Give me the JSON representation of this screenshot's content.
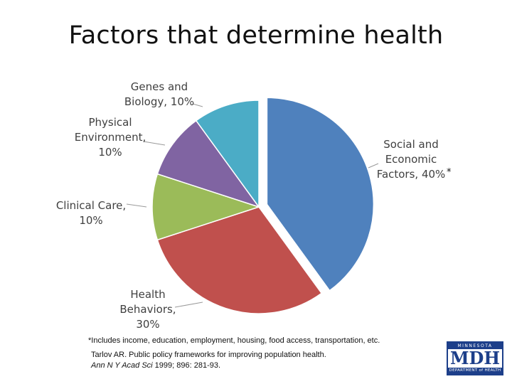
{
  "title": "Factors that determine health",
  "chart_data": {
    "type": "pie",
    "title": "Factors that determine health",
    "slices": [
      {
        "label_lines": [
          "Social and",
          "Economic",
          "Factors, 40%"
        ],
        "name": "Social and Economic Factors",
        "value": 40,
        "color": "#4f81bd",
        "exploded": true,
        "asterisk": "*"
      },
      {
        "label_lines": [
          "Health",
          "Behaviors,",
          "30%"
        ],
        "name": "Health Behaviors",
        "value": 30,
        "color": "#c0504d"
      },
      {
        "label_lines": [
          "Clinical Care,",
          "10%"
        ],
        "name": "Clinical Care",
        "value": 10,
        "color": "#9bbb59"
      },
      {
        "label_lines": [
          "Physical",
          "Environment,",
          "10%"
        ],
        "name": "Physical Environment",
        "value": 10,
        "color": "#8064a2"
      },
      {
        "label_lines": [
          "Genes and",
          "Biology, 10%"
        ],
        "name": "Genes and Biology",
        "value": 10,
        "color": "#4bacc6"
      }
    ],
    "start": "top, clockwise"
  },
  "footnote": "*Includes income, education, employment, housing, food access, transportation, etc.",
  "citation": {
    "line1": "Tarlov AR.  Public policy frameworks for improving population health.",
    "journal": "Ann N Y Acad Sci",
    "line2_rest": " 1999; 896: 281-93."
  },
  "logo": {
    "top_text": "MINNESOTA",
    "mark": "MDH",
    "bottom_text": "DEPARTMENT of HEALTH"
  }
}
